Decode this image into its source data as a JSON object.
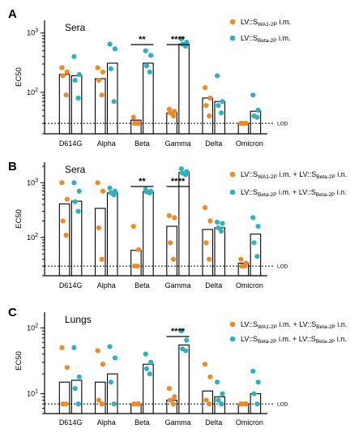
{
  "colors": {
    "orange": "#F08A24",
    "teal": "#2DB3BF",
    "bar_stroke": "#000000"
  },
  "chart_data": [
    {
      "type": "bar",
      "panel": "A",
      "tag": "Sera",
      "ylabel": "EC50",
      "yscale": "log",
      "ylim": [
        20,
        1400
      ],
      "yticks": [
        {
          "v": 100,
          "base": "10",
          "exp": "2"
        },
        {
          "v": 1000,
          "base": "10",
          "exp": "3"
        }
      ],
      "categories": [
        "D614G",
        "Alpha",
        "Beta",
        "Gamma",
        "Delta",
        "Omicron"
      ],
      "lod": 30,
      "lod_label": "LOD",
      "legend": [
        {
          "pre": "LV::S",
          "sub": "WA1-2P",
          "post": " i.m.",
          "color": "orange"
        },
        {
          "pre": "LV::S",
          "sub": "Beta-2P",
          "post": " i.m.",
          "color": "teal"
        }
      ],
      "significance": [
        {
          "category": "Beta",
          "label": "**"
        },
        {
          "category": "Gamma",
          "label": "****"
        }
      ],
      "series": [
        {
          "color": "orange",
          "bars": [
            200,
            170,
            34,
            45,
            80,
            30
          ],
          "points": [
            [
              260,
              220,
              190,
              90
            ],
            [
              260,
              220,
              160,
              90
            ],
            [
              38,
              30,
              30,
              30
            ],
            [
              52,
              48,
              45,
              40
            ],
            [
              120,
              80,
              60,
              40
            ],
            [
              30,
              30,
              30,
              30
            ]
          ]
        },
        {
          "color": "teal",
          "bars": [
            190,
            310,
            310,
            650,
            70,
            48
          ],
          "points": [
            [
              400,
              200,
              160,
              80
            ],
            [
              650,
              540,
              250,
              70
            ],
            [
              500,
              420,
              280,
              220
            ],
            [
              800,
              700,
              650,
              600
            ],
            [
              190,
              70,
              60,
              45
            ],
            [
              90,
              50,
              40,
              38
            ]
          ]
        }
      ]
    },
    {
      "type": "bar",
      "panel": "B",
      "tag": "Sera",
      "ylabel": "EC50",
      "yscale": "log",
      "ylim": [
        20,
        2000
      ],
      "yticks": [
        {
          "v": 100,
          "base": "10",
          "exp": "2"
        },
        {
          "v": 1000,
          "base": "10",
          "exp": "3"
        }
      ],
      "categories": [
        "D614G",
        "Alpha",
        "Beta",
        "Gamma",
        "Delta",
        "Omicron"
      ],
      "lod": 30,
      "lod_label": "LOD",
      "legend": [
        {
          "pre": "LV::S",
          "sub": "WA1-2P",
          "post": " i.m. + LV::S",
          "sub2": "Beta-2P",
          "post2": " i.n.",
          "color": "orange"
        },
        {
          "pre": "LV::S",
          "sub": "Beta-2P",
          "post": " i.m. + LV::S",
          "sub2": "Beta-2P",
          "post2": " i.n.",
          "color": "teal"
        }
      ],
      "significance": [
        {
          "category": "Beta",
          "label": "**"
        },
        {
          "category": "Gamma",
          "label": "****"
        }
      ],
      "series": [
        {
          "color": "orange",
          "bars": [
            410,
            340,
            58,
            160,
            140,
            34
          ],
          "points": [
            [
              1000,
              500,
              200,
              110
            ],
            [
              1000,
              700,
              150,
              40
            ],
            [
              160,
              60,
              30,
              30
            ],
            [
              250,
              230,
              80,
              40
            ],
            [
              350,
              200,
              80,
              40
            ],
            [
              40,
              34,
              30,
              30
            ]
          ]
        },
        {
          "color": "teal",
          "bars": [
            460,
            650,
            680,
            1550,
            150,
            115
          ],
          "points": [
            [
              1000,
              700,
              450,
              300
            ],
            [
              800,
              700,
              650,
              600
            ],
            [
              750,
              700,
              680,
              650
            ],
            [
              1800,
              1600,
              1500,
              1400
            ],
            [
              190,
              180,
              150,
              130
            ],
            [
              230,
              160,
              80,
              45
            ]
          ]
        }
      ]
    },
    {
      "type": "bar",
      "panel": "C",
      "tag": "Lungs",
      "ylabel": "EC50",
      "yscale": "log",
      "ylim": [
        5,
        150
      ],
      "yticks": [
        {
          "v": 10,
          "base": "10",
          "exp": "1"
        },
        {
          "v": 100,
          "base": "10",
          "exp": "2"
        }
      ],
      "categories": [
        "D614G",
        "Alpha",
        "Beta",
        "Gamma",
        "Delta",
        "Omicron"
      ],
      "lod": 7,
      "lod_label": "LOD",
      "legend": [
        {
          "pre": "LV::S",
          "sub": "WA1-2P",
          "post": " i.m. + LV::S",
          "sub2": "Beta-2P",
          "post2": " i.n.",
          "color": "orange"
        },
        {
          "pre": "LV::S",
          "sub": "Beta-2P",
          "post": " i.m. + LV::S",
          "sub2": "Beta-2P",
          "post2": " i.n.",
          "color": "teal"
        }
      ],
      "significance": [
        {
          "category": "Gamma",
          "label": "****"
        }
      ],
      "series": [
        {
          "color": "orange",
          "bars": [
            15,
            15,
            7,
            8,
            11,
            7
          ],
          "points": [
            [
              50,
              25,
              7,
              7
            ],
            [
              45,
              28,
              8,
              7
            ],
            [
              7,
              7,
              7,
              7
            ],
            [
              12,
              9,
              8,
              7
            ],
            [
              28,
              18,
              8,
              7
            ],
            [
              7,
              7,
              7,
              7
            ]
          ]
        },
        {
          "color": "teal",
          "bars": [
            16,
            20,
            28,
            55,
            9,
            10
          ],
          "points": [
            [
              50,
              18,
              12,
              7
            ],
            [
              52,
              35,
              15,
              7
            ],
            [
              40,
              30,
              24,
              20
            ],
            [
              90,
              65,
              48,
              45
            ],
            [
              15,
              10,
              8,
              7
            ],
            [
              22,
              15,
              10,
              7
            ]
          ]
        }
      ]
    }
  ]
}
